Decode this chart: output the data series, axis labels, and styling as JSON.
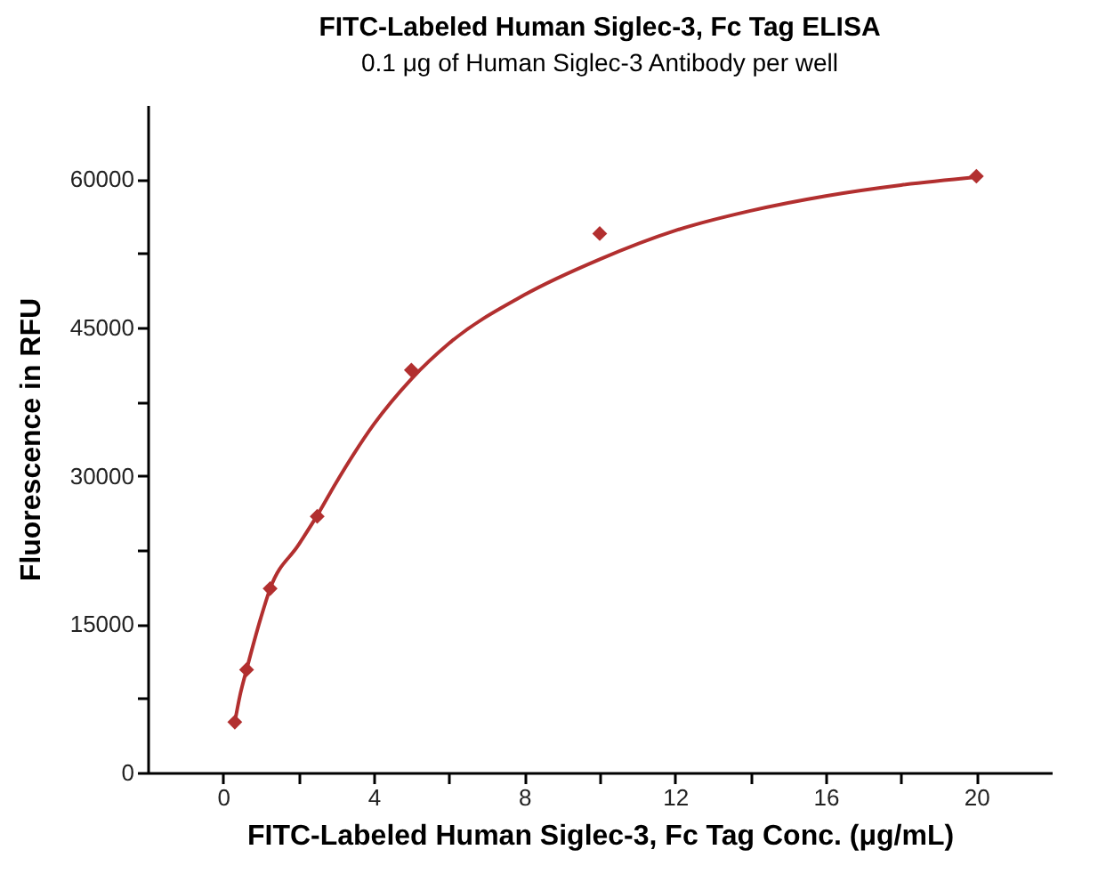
{
  "chart_data": {
    "type": "scatter",
    "title": "FITC-Labeled Human Siglec-3, Fc Tag ELISA",
    "subtitle": "0.1 μg of Human Siglec-3 Antibody per well",
    "xlabel": "FITC-Labeled Human Siglec-3, Fc Tag Conc. (μg/mL)",
    "ylabel": "Fluorescence in RFU",
    "series": [
      {
        "type": "line",
        "color": "#b22f2f",
        "marker": "none",
        "line_style": "solid",
        "x": [
          0.3125,
          0.45,
          0.625,
          1,
          1.25,
          2,
          2.5,
          3,
          4,
          5,
          6,
          8,
          10,
          12,
          14,
          16,
          18,
          20
        ],
        "values": [
          5100,
          7800,
          10400,
          15600,
          18600,
          23000,
          26000,
          29300,
          35200,
          39800,
          43400,
          48300,
          51900,
          54800,
          56800,
          58300,
          59400,
          60200
        ]
      },
      {
        "color": "#b22f2f",
        "marker": "diamond",
        "x": [
          0.3125,
          0.625,
          1.25,
          2.5,
          5,
          10,
          20
        ],
        "values": [
          5100,
          10400,
          18600,
          25900,
          40700,
          54500,
          60300
        ]
      }
    ],
    "xlim": [
      -2,
      22
    ],
    "xticks": [
      0,
      {
        "value": 2,
        "label": null
      },
      4,
      {
        "value": 6,
        "label": null
      },
      8,
      {
        "value": 10,
        "label": null
      },
      12,
      {
        "value": 14,
        "label": null
      },
      16,
      {
        "value": 18,
        "label": null
      },
      20
    ],
    "ylim": [
      0,
      67500
    ],
    "yticks": [
      0,
      {
        "value": 7500,
        "label": null
      },
      15000,
      {
        "value": 22500,
        "label": null
      },
      30000,
      {
        "value": 37500,
        "label": null
      },
      45000,
      {
        "value": 52500,
        "label": null
      },
      60000
    ],
    "grid": false
  }
}
